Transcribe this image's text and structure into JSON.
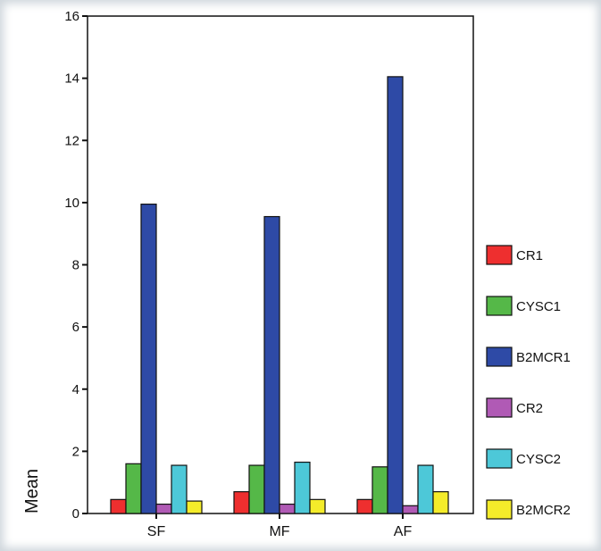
{
  "chart_data": {
    "type": "bar",
    "categories": [
      "SF",
      "MF",
      "AF"
    ],
    "series": [
      {
        "name": "CR1",
        "color": "#ee2f2f",
        "values": [
          0.45,
          0.7,
          0.45
        ]
      },
      {
        "name": "CYSC1",
        "color": "#55b848",
        "values": [
          1.6,
          1.55,
          1.5
        ]
      },
      {
        "name": "B2MCR1",
        "color": "#2e4aa6",
        "values": [
          9.95,
          9.55,
          14.05
        ]
      },
      {
        "name": "CR2",
        "color": "#b05ab5",
        "values": [
          0.3,
          0.3,
          0.25
        ]
      },
      {
        "name": "CYSC2",
        "color": "#4dc8d8",
        "values": [
          1.55,
          1.65,
          1.55
        ]
      },
      {
        "name": "B2MCR2",
        "color": "#f4ec2a",
        "values": [
          0.4,
          0.45,
          0.7
        ]
      }
    ],
    "ylabel": "Mean",
    "xlabel": "",
    "ylim": [
      0,
      16
    ],
    "yticks": [
      0,
      2,
      4,
      6,
      8,
      10,
      12,
      14,
      16
    ],
    "legend_position": "right",
    "grid": false
  }
}
